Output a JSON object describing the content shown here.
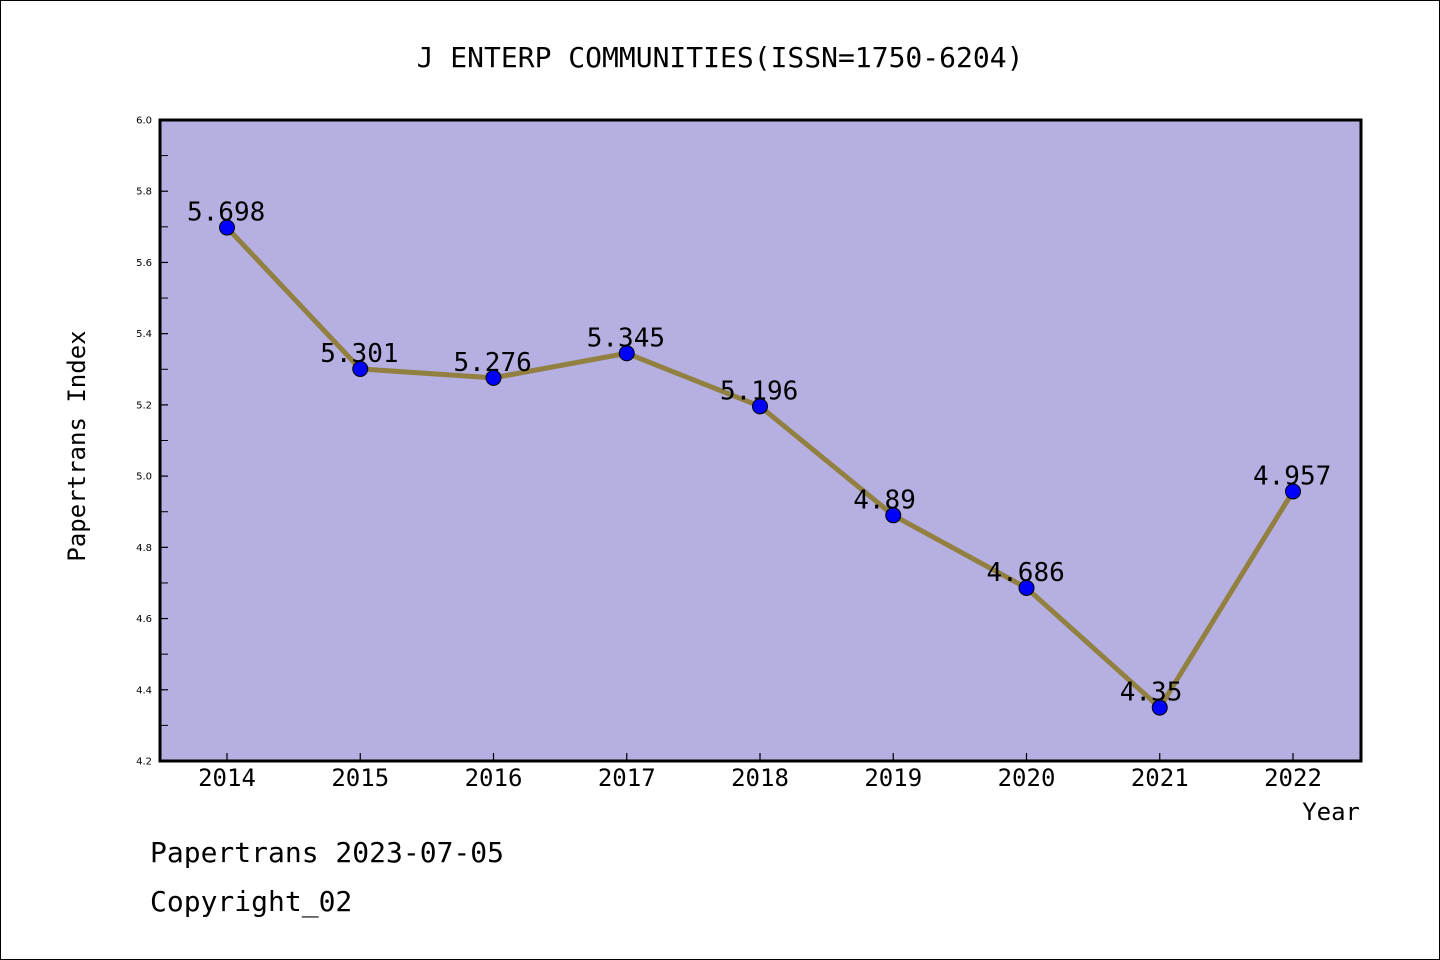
{
  "chart_data": {
    "type": "line",
    "title": "J ENTERP COMMUNITIES(ISSN=1750-6204)",
    "xlabel": "Year",
    "ylabel": "Papertrans Index",
    "categories": [
      "2014",
      "2015",
      "2016",
      "2017",
      "2018",
      "2019",
      "2020",
      "2021",
      "2022"
    ],
    "values": [
      5.698,
      5.301,
      5.276,
      5.345,
      5.196,
      4.89,
      4.686,
      4.35,
      4.957
    ],
    "data_labels": [
      "5.698",
      "5.301",
      "5.276",
      "5.345",
      "5.196",
      "4.89",
      "4.686",
      "4.35",
      "4.957"
    ],
    "ylim": [
      4.2,
      6.0
    ],
    "yticks": [
      "4.2",
      "4.4",
      "4.6",
      "4.8",
      "5.0",
      "5.2",
      "5.4",
      "5.6",
      "5.8",
      "6.0"
    ],
    "grid": false,
    "legend": "none",
    "colors": {
      "plot_background": "#b5afe2",
      "line": "#928040",
      "marker": "#0000ff"
    }
  },
  "footer": {
    "line1": "Papertrans 2023-07-05",
    "line2": "Copyright_02"
  }
}
